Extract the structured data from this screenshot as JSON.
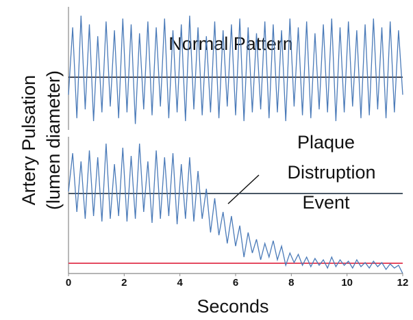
{
  "chart_data": [
    {
      "type": "line",
      "annotation": "Normal Pattern",
      "ylabel": [
        "Artery Pulsation",
        "(lumen diameter)"
      ],
      "x": [
        0,
        0.15,
        0.3,
        0.45,
        0.6,
        0.75,
        0.9,
        1.05,
        1.2,
        1.35,
        1.5,
        1.65,
        1.8,
        1.95,
        2.1,
        2.25,
        2.4,
        2.55,
        2.7,
        2.85,
        3,
        3.15,
        3.3,
        3.45,
        3.6,
        3.75,
        3.9,
        4.05,
        4.2,
        4.35,
        4.5,
        4.65,
        4.8,
        4.95,
        5.1,
        5.25,
        5.4,
        5.55,
        5.7,
        5.85,
        6,
        6.15,
        6.3,
        6.45,
        6.6,
        6.75,
        6.9,
        7.05,
        7.2,
        7.35,
        7.5,
        7.65,
        7.8,
        7.95,
        8.1,
        8.25,
        8.4,
        8.55,
        8.7,
        8.85,
        9,
        9.15,
        9.3,
        9.45,
        9.6,
        9.75,
        9.9,
        10.05,
        10.2,
        10.35,
        10.5,
        10.65,
        10.8,
        10.95,
        11.1,
        11.25,
        11.4,
        11.55,
        11.7,
        11.85,
        12
      ],
      "series": [
        {
          "color": "#4a7ab8",
          "values": [
            -0.3,
            0.85,
            -0.7,
            1.05,
            -0.55,
            0.9,
            -0.75,
            0.7,
            -0.6,
            0.95,
            -0.5,
            0.8,
            -0.7,
            1.0,
            -0.6,
            0.9,
            -0.8,
            0.75,
            -0.55,
            0.95,
            -0.65,
            0.85,
            -0.5,
            1.0,
            -0.7,
            0.8,
            -0.6,
            0.9,
            -0.75,
            1.05,
            -0.55,
            0.85,
            -0.65,
            0.7,
            -0.6,
            0.95,
            -0.7,
            0.8,
            -0.5,
            0.9,
            -0.65,
            1.0,
            -0.75,
            0.85,
            -0.6,
            0.75,
            -0.55,
            0.95,
            -0.7,
            0.9,
            -0.6,
            0.8,
            -0.75,
            1.0,
            -0.5,
            0.85,
            -0.65,
            0.95,
            -0.7,
            0.75,
            -0.55,
            0.9,
            -0.6,
            1.0,
            -0.75,
            0.85,
            -0.6,
            0.95,
            -0.5,
            0.8,
            -0.7,
            0.9,
            -0.65,
            1.0,
            -0.55,
            0.85,
            -0.7,
            0.95,
            -0.6,
            0.8,
            -0.3
          ]
        }
      ],
      "xlim": [
        0,
        12
      ],
      "ylim": [
        -0.9,
        1.2
      ],
      "hlines": [
        {
          "value": 0,
          "color": "#2b2f3b"
        }
      ]
    },
    {
      "type": "line",
      "annotation": [
        "Plaque",
        "Distruption",
        "Event"
      ],
      "xlabel": "Seconds",
      "x": [
        0,
        0.15,
        0.3,
        0.45,
        0.6,
        0.75,
        0.9,
        1.05,
        1.2,
        1.35,
        1.5,
        1.65,
        1.8,
        1.95,
        2.1,
        2.25,
        2.4,
        2.55,
        2.7,
        2.85,
        3,
        3.15,
        3.3,
        3.45,
        3.6,
        3.75,
        3.9,
        4.05,
        4.2,
        4.35,
        4.5,
        4.65,
        4.8,
        4.95,
        5.1,
        5.25,
        5.4,
        5.55,
        5.7,
        5.85,
        6,
        6.15,
        6.3,
        6.45,
        6.6,
        6.75,
        6.9,
        7.05,
        7.2,
        7.35,
        7.5,
        7.65,
        7.8,
        7.95,
        8.1,
        8.25,
        8.4,
        8.55,
        8.7,
        8.85,
        9,
        9.15,
        9.3,
        9.45,
        9.6,
        9.75,
        9.9,
        10.05,
        10.2,
        10.35,
        10.5,
        10.65,
        10.8,
        10.95,
        11.1,
        11.25,
        11.4,
        11.55,
        11.7,
        11.85,
        12
      ],
      "series": [
        {
          "color": "#4a7ab8",
          "values": [
            0.6,
            0.88,
            0.45,
            0.82,
            0.4,
            0.9,
            0.42,
            0.85,
            0.38,
            0.95,
            0.4,
            0.8,
            0.42,
            0.92,
            0.38,
            0.86,
            0.4,
            0.95,
            0.45,
            0.82,
            0.37,
            0.9,
            0.4,
            0.85,
            0.42,
            0.88,
            0.36,
            0.8,
            0.4,
            0.85,
            0.38,
            0.75,
            0.4,
            0.62,
            0.3,
            0.55,
            0.28,
            0.45,
            0.22,
            0.42,
            0.2,
            0.35,
            0.12,
            0.3,
            0.15,
            0.25,
            0.1,
            0.22,
            0.12,
            0.24,
            0.1,
            0.2,
            0.06,
            0.15,
            0.08,
            0.14,
            0.06,
            0.12,
            0.05,
            0.11,
            0.06,
            0.1,
            0.04,
            0.12,
            0.05,
            0.1,
            0.06,
            0.09,
            0.04,
            0.1,
            0.05,
            0.08,
            0.04,
            0.09,
            0.05,
            0.08,
            0.03,
            0.07,
            0.04,
            0.06,
            0.0
          ]
        }
      ],
      "xlim": [
        0,
        12
      ],
      "ylim": [
        0,
        1
      ],
      "xticks": [
        0,
        2,
        4,
        6,
        8,
        10,
        12
      ],
      "hlines": [
        {
          "value": 0.585,
          "color": "#2f3f4f"
        },
        {
          "value": 0.075,
          "color": "#e0304a"
        }
      ]
    }
  ]
}
